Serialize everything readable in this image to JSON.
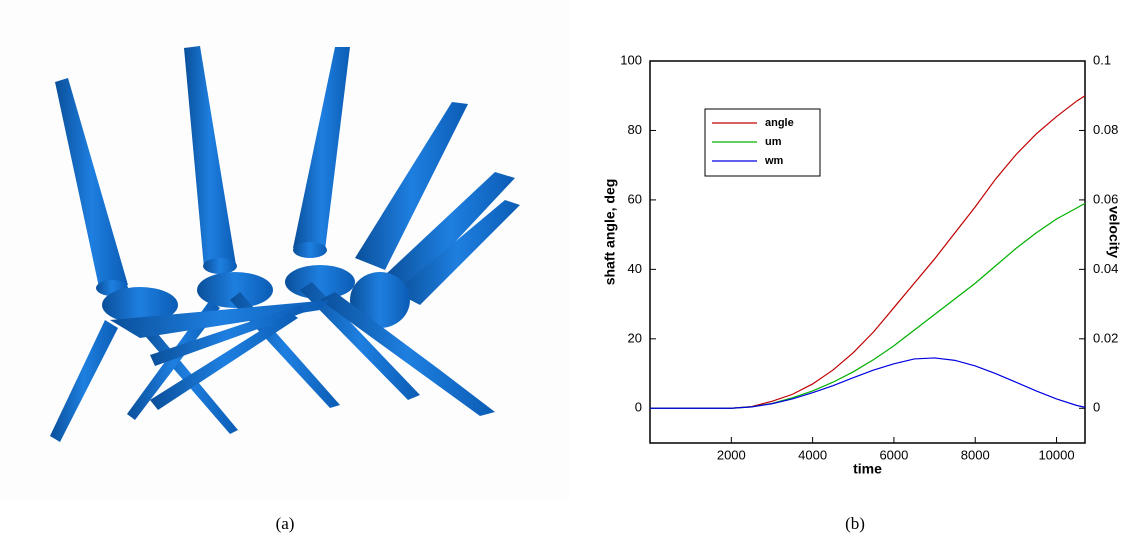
{
  "captions": [
    "(a)",
    "(b)"
  ],
  "chart_data": {
    "type": "line",
    "x_label": "time",
    "y_label": "shaft angle, deg",
    "y2_label": "velocity",
    "x": [
      0,
      1000,
      2000,
      2500,
      3000,
      3500,
      4000,
      4500,
      5000,
      5500,
      6000,
      6500,
      7000,
      7500,
      8000,
      8500,
      9000,
      9500,
      10000,
      10500,
      10700
    ],
    "series": [
      {
        "name": "angle",
        "color": "#c00000",
        "axis": "y",
        "values": [
          0,
          0,
          0,
          0.5,
          2,
          4,
          7,
          11,
          16,
          22,
          29,
          36,
          43,
          50.5,
          58,
          66,
          73,
          79,
          84,
          88.5,
          90
        ]
      },
      {
        "name": "um",
        "color": "#00b000",
        "axis": "y2",
        "values": [
          0,
          0,
          0,
          0.0004,
          0.0014,
          0.003,
          0.005,
          0.0075,
          0.0105,
          0.014,
          0.018,
          0.0225,
          0.027,
          0.0315,
          0.036,
          0.041,
          0.046,
          0.0505,
          0.0545,
          0.0577,
          0.059
        ]
      },
      {
        "name": "wm",
        "color": "#0000e0",
        "axis": "y2",
        "values": [
          0,
          0,
          0,
          0.0004,
          0.0013,
          0.0027,
          0.0045,
          0.0065,
          0.0088,
          0.011,
          0.0128,
          0.0142,
          0.0145,
          0.0138,
          0.0122,
          0.01,
          0.0075,
          0.005,
          0.0027,
          0.0008,
          0.0003
        ]
      }
    ],
    "xlim": [
      0,
      10700
    ],
    "xticks": [
      2000,
      4000,
      6000,
      8000,
      10000
    ],
    "ylim": [
      -10,
      100
    ],
    "yticks": [
      0,
      20,
      40,
      60,
      80,
      100
    ],
    "y2lim": [
      -0.01,
      0.1
    ],
    "y2ticks": [
      0,
      0.02,
      0.04,
      0.06,
      0.08,
      0.1
    ],
    "legend": "upper left"
  }
}
